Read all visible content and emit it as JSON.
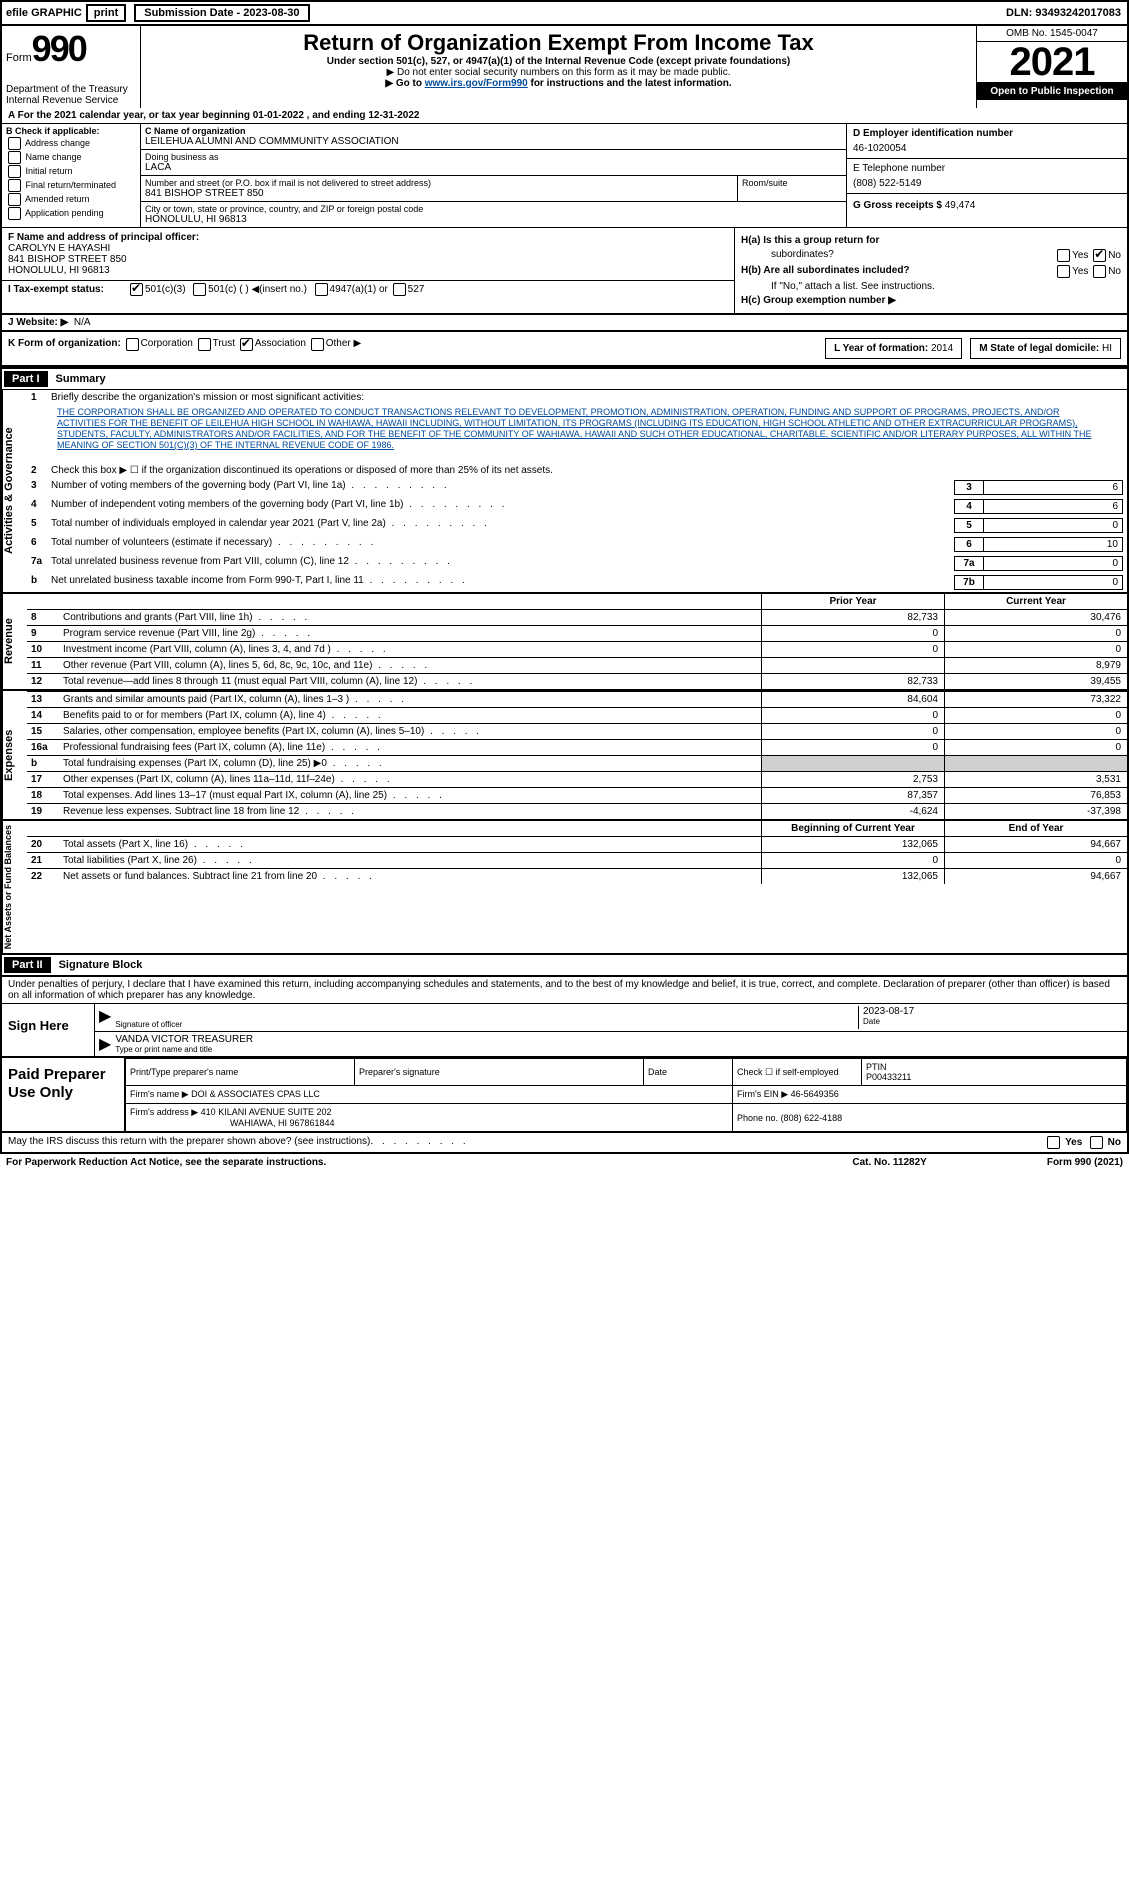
{
  "topbar": {
    "efile": "efile GRAPHIC",
    "print": "print",
    "submission": "Submission Date - 2023-08-30",
    "dln": "DLN: 93493242017083"
  },
  "header": {
    "form": "Form",
    "formnum": "990",
    "dept1": "Department of the Treasury",
    "dept2": "Internal Revenue Service",
    "title": "Return of Organization Exempt From Income Tax",
    "sub1": "Under section 501(c), 527, or 4947(a)(1) of the Internal Revenue Code (except private foundations)",
    "sub2": "▶ Do not enter social security numbers on this form as it may be made public.",
    "sub3a": "▶ Go to ",
    "sub3link": "www.irs.gov/Form990",
    "sub3b": " for instructions and the latest information.",
    "omb": "OMB No. 1545-0047",
    "year": "2021",
    "inspect": "Open to Public Inspection"
  },
  "a_line": "A For the 2021 calendar year, or tax year beginning 01-01-2022   , and ending 12-31-2022",
  "b": {
    "title": "B Check if applicable:",
    "items": [
      "Address change",
      "Name change",
      "Initial return",
      "Final return/terminated",
      "Amended return",
      "Application pending"
    ]
  },
  "c": {
    "label_name": "C Name of organization",
    "org": "LEILEHUA ALUMNI AND COMMMUNITY ASSOCIATION",
    "dba_label": "Doing business as",
    "dba": "LACA",
    "street_label": "Number and street (or P.O. box if mail is not delivered to street address)",
    "street": "841 BISHOP STREET 850",
    "suite_label": "Room/suite",
    "city_label": "City or town, state or province, country, and ZIP or foreign postal code",
    "city": "HONOLULU, HI  96813"
  },
  "d": {
    "label": "D Employer identification number",
    "ein": "46-1020054"
  },
  "e": {
    "label": "E Telephone number",
    "phone": "(808) 522-5149"
  },
  "g": {
    "label": "G Gross receipts $",
    "amount": "49,474"
  },
  "f": {
    "label": "F  Name and address of principal officer:",
    "name": "CAROLYN E HAYASHI",
    "addr1": "841 BISHOP STREET 850",
    "addr2": "HONOLULU, HI  96813"
  },
  "h": {
    "ha": "H(a)  Is this a group return for",
    "ha2": "subordinates?",
    "hb": "H(b)  Are all subordinates included?",
    "hb2": "If \"No,\" attach a list. See instructions.",
    "hc": "H(c)  Group exemption number ▶"
  },
  "i": {
    "label": "I   Tax-exempt status:",
    "opts": [
      "501(c)(3)",
      "501(c) (  ) ◀(insert no.)",
      "4947(a)(1) or",
      "527"
    ]
  },
  "j": {
    "label": "J   Website: ▶",
    "val": "N/A"
  },
  "k": {
    "label": "K Form of organization:",
    "opts": [
      "Corporation",
      "Trust",
      "Association",
      "Other ▶"
    ],
    "l_label": "L Year of formation:",
    "l_val": "2014",
    "m_label": "M State of legal domicile:",
    "m_val": "HI"
  },
  "part1": {
    "tag": "Part I",
    "title": "Summary",
    "side_ag": "Activities & Governance",
    "side_rev": "Revenue",
    "side_exp": "Expenses",
    "side_net": "Net Assets or Fund Balances",
    "l1": "Briefly describe the organization's mission or most significant activities:",
    "mission": "THE CORPORATION SHALL BE ORGANIZED AND OPERATED TO CONDUCT TRANSACTIONS RELEVANT TO DEVELOPMENT, PROMOTION, ADMINISTRATION, OPERATION, FUNDING AND SUPPORT OF PROGRAMS, PROJECTS, AND/OR ACTIVITIES FOR THE BENEFIT OF LEILEHUA HIGH SCHOOL IN WAHIAWA, HAWAII INCLUDING, WITHOUT LIMITATION, ITS PROGRAMS (INCLUDING ITS EDUCATION, HIGH SCHOOL ATHLETIC AND OTHER EXTRACURRICULAR PROGRAMS), STUDENTS, FACULTY, ADMINISTRATORS AND/OR FACILITIES, AND FOR THE BENEFIT OF THE COMMUNITY OF WAHIAWA, HAWAII AND SUCH OTHER EDUCATIONAL, CHARITABLE, SCIENTIFIC AND/OR LITERARY PURPOSES, ALL WITHIN THE MEANING OF SECTION 501(C)(3) OF THE INTERNAL REVENUE CODE OF 1986.",
    "l2": "Check this box ▶ ☐ if the organization discontinued its operations or disposed of more than 25% of its net assets.",
    "lines_ag": [
      {
        "n": "3",
        "t": "Number of voting members of the governing body (Part VI, line 1a)",
        "box": "3",
        "v": "6"
      },
      {
        "n": "4",
        "t": "Number of independent voting members of the governing body (Part VI, line 1b)",
        "box": "4",
        "v": "6"
      },
      {
        "n": "5",
        "t": "Total number of individuals employed in calendar year 2021 (Part V, line 2a)",
        "box": "5",
        "v": "0"
      },
      {
        "n": "6",
        "t": "Total number of volunteers (estimate if necessary)",
        "box": "6",
        "v": "10"
      },
      {
        "n": "7a",
        "t": "Total unrelated business revenue from Part VIII, column (C), line 12",
        "box": "7a",
        "v": "0"
      },
      {
        "n": "b",
        "t": "Net unrelated business taxable income from Form 990-T, Part I, line 11",
        "box": "7b",
        "v": "0"
      }
    ],
    "hdr_py": "Prior Year",
    "hdr_cy": "Current Year",
    "lines_rev": [
      {
        "n": "8",
        "t": "Contributions and grants (Part VIII, line 1h)",
        "py": "82,733",
        "cy": "30,476"
      },
      {
        "n": "9",
        "t": "Program service revenue (Part VIII, line 2g)",
        "py": "0",
        "cy": "0"
      },
      {
        "n": "10",
        "t": "Investment income (Part VIII, column (A), lines 3, 4, and 7d )",
        "py": "0",
        "cy": "0"
      },
      {
        "n": "11",
        "t": "Other revenue (Part VIII, column (A), lines 5, 6d, 8c, 9c, 10c, and 11e)",
        "py": "",
        "cy": "8,979"
      },
      {
        "n": "12",
        "t": "Total revenue—add lines 8 through 11 (must equal Part VIII, column (A), line 12)",
        "py": "82,733",
        "cy": "39,455"
      }
    ],
    "lines_exp": [
      {
        "n": "13",
        "t": "Grants and similar amounts paid (Part IX, column (A), lines 1–3 )",
        "py": "84,604",
        "cy": "73,322"
      },
      {
        "n": "14",
        "t": "Benefits paid to or for members (Part IX, column (A), line 4)",
        "py": "0",
        "cy": "0"
      },
      {
        "n": "15",
        "t": "Salaries, other compensation, employee benefits (Part IX, column (A), lines 5–10)",
        "py": "0",
        "cy": "0"
      },
      {
        "n": "16a",
        "t": "Professional fundraising fees (Part IX, column (A), line 11e)",
        "py": "0",
        "cy": "0"
      },
      {
        "n": "b",
        "t": "Total fundraising expenses (Part IX, column (D), line 25) ▶0",
        "py": "",
        "cy": "",
        "shaded": true
      },
      {
        "n": "17",
        "t": "Other expenses (Part IX, column (A), lines 11a–11d, 11f–24e)",
        "py": "2,753",
        "cy": "3,531"
      },
      {
        "n": "18",
        "t": "Total expenses. Add lines 13–17 (must equal Part IX, column (A), line 25)",
        "py": "87,357",
        "cy": "76,853"
      },
      {
        "n": "19",
        "t": "Revenue less expenses. Subtract line 18 from line 12",
        "py": "-4,624",
        "cy": "-37,398"
      }
    ],
    "hdr_beg": "Beginning of Current Year",
    "hdr_end": "End of Year",
    "lines_net": [
      {
        "n": "20",
        "t": "Total assets (Part X, line 16)",
        "py": "132,065",
        "cy": "94,667"
      },
      {
        "n": "21",
        "t": "Total liabilities (Part X, line 26)",
        "py": "0",
        "cy": "0"
      },
      {
        "n": "22",
        "t": "Net assets or fund balances. Subtract line 21 from line 20",
        "py": "132,065",
        "cy": "94,667"
      }
    ]
  },
  "part2": {
    "tag": "Part II",
    "title": "Signature Block",
    "decl": "Under penalties of perjury, I declare that I have examined this return, including accompanying schedules and statements, and to the best of my knowledge and belief, it is true, correct, and complete. Declaration of preparer (other than officer) is based on all information of which preparer has any knowledge.",
    "sign_here": "Sign Here",
    "sig_of_officer": "Signature of officer",
    "sig_date": "2023-08-17",
    "date_label": "Date",
    "officer": "VANDA VICTOR  TREASURER",
    "officer_label": "Type or print name and title",
    "paid": "Paid Preparer Use Only",
    "prep_name_label": "Print/Type preparer's name",
    "prep_sig_label": "Preparer's signature",
    "prep_date_label": "Date",
    "check_se": "Check ☐ if self-employed",
    "ptin_label": "PTIN",
    "ptin": "P00433211",
    "firm_label": "Firm's name    ▶",
    "firm": "DOI & ASSOCIATES CPAS LLC",
    "ein_label": "Firm's EIN ▶",
    "ein": "46-5649356",
    "addr_label": "Firm's address ▶",
    "addr1": "410 KILANI AVENUE SUITE 202",
    "addr2": "WAHIAWA, HI  967861844",
    "phone_label": "Phone no.",
    "phone": "(808) 622-4188",
    "discuss": "May the IRS discuss this return with the preparer shown above? (see instructions)"
  },
  "footer": {
    "left": "For Paperwork Reduction Act Notice, see the separate instructions.",
    "mid": "Cat. No. 11282Y",
    "right": "Form 990 (2021)"
  },
  "yn": {
    "yes": "Yes",
    "no": "No"
  }
}
